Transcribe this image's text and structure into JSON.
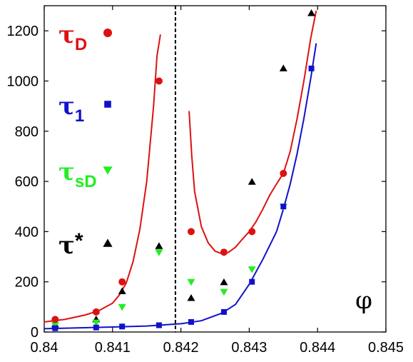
{
  "chart_data": {
    "type": "scatter",
    "title": "",
    "xlabel": "φ",
    "ylabel": "",
    "xlim": [
      0.84,
      0.845
    ],
    "ylim": [
      0,
      1300
    ],
    "xticks": [
      0.84,
      0.841,
      0.842,
      0.843,
      0.844,
      0.845
    ],
    "yticks": [
      0,
      200,
      400,
      600,
      800,
      1000,
      1200
    ],
    "xtick_labels": [
      "0.84",
      "0.841",
      "0.842",
      "0.843",
      "0.844",
      "0.845"
    ],
    "ytick_labels": [
      "0",
      "200",
      "400",
      "600",
      "800",
      "1000",
      "1200"
    ],
    "grid": false,
    "legend_position": "left",
    "vertical_line": {
      "x": 0.84192,
      "style": "dashed",
      "color": "#000000"
    },
    "series": [
      {
        "name": "τ_D",
        "label_main": "τ",
        "label_sub": "D",
        "color": "#dd1111",
        "marker": "circle",
        "points": [
          [
            0.84016,
            50
          ],
          [
            0.84076,
            80
          ],
          [
            0.84114,
            200
          ],
          [
            0.84168,
            1000
          ],
          [
            0.84215,
            400
          ],
          [
            0.84263,
            318
          ],
          [
            0.84304,
            400
          ],
          [
            0.8435,
            632
          ]
        ]
      },
      {
        "name": "τ_1",
        "label_main": "τ",
        "label_sub": "1",
        "color": "#1111cc",
        "marker": "square",
        "points": [
          [
            0.84016,
            15
          ],
          [
            0.84076,
            18
          ],
          [
            0.84114,
            22
          ],
          [
            0.84168,
            27
          ],
          [
            0.84215,
            40
          ],
          [
            0.84263,
            80
          ],
          [
            0.84304,
            200
          ],
          [
            0.8435,
            500
          ],
          [
            0.84391,
            1050
          ]
        ]
      },
      {
        "name": "τ_sD",
        "label_main": "τ",
        "label_sub": "sD",
        "color": "#22ee22",
        "marker": "triangle-down",
        "points": [
          [
            0.84016,
            28
          ],
          [
            0.84076,
            38
          ],
          [
            0.84114,
            100
          ],
          [
            0.84168,
            318
          ],
          [
            0.84215,
            200
          ],
          [
            0.84263,
            160
          ],
          [
            0.84304,
            250
          ],
          [
            0.8435,
            500
          ]
        ]
      },
      {
        "name": "τ*",
        "label_main": "τ",
        "label_sub": "*",
        "color": "#000000",
        "marker": "triangle-up",
        "points": [
          [
            0.84016,
            30
          ],
          [
            0.84076,
            50
          ],
          [
            0.84114,
            162
          ],
          [
            0.84168,
            342
          ],
          [
            0.84215,
            135
          ],
          [
            0.84263,
            198
          ],
          [
            0.84304,
            598
          ],
          [
            0.8435,
            1050
          ],
          [
            0.84391,
            1270
          ]
        ]
      }
    ],
    "fits": [
      {
        "name": "τ_D fit (left branch)",
        "color": "#dd1111",
        "points": [
          [
            0.84,
            40
          ],
          [
            0.8403,
            50
          ],
          [
            0.8406,
            68
          ],
          [
            0.8408,
            85
          ],
          [
            0.841,
            115
          ],
          [
            0.8411,
            148
          ],
          [
            0.8412,
            195
          ],
          [
            0.8413,
            280
          ],
          [
            0.8414,
            410
          ],
          [
            0.8415,
            600
          ],
          [
            0.8416,
            900
          ],
          [
            0.84165,
            1100
          ],
          [
            0.8417,
            1185
          ]
        ]
      },
      {
        "name": "τ_D fit (right branch)",
        "color": "#dd1111",
        "points": [
          [
            0.84212,
            880
          ],
          [
            0.84216,
            700
          ],
          [
            0.8422,
            560
          ],
          [
            0.8423,
            420
          ],
          [
            0.8424,
            355
          ],
          [
            0.8425,
            322
          ],
          [
            0.8426,
            312
          ],
          [
            0.8427,
            318
          ],
          [
            0.8428,
            338
          ],
          [
            0.8429,
            370
          ],
          [
            0.843,
            400
          ],
          [
            0.8431,
            440
          ],
          [
            0.8432,
            490
          ],
          [
            0.8433,
            545
          ],
          [
            0.8434,
            590
          ],
          [
            0.8435,
            632
          ],
          [
            0.8436,
            720
          ],
          [
            0.8437,
            850
          ],
          [
            0.8438,
            1000
          ],
          [
            0.8439,
            1170
          ],
          [
            0.84398,
            1280
          ]
        ]
      },
      {
        "name": "τ_1 fit",
        "color": "#1111cc",
        "points": [
          [
            0.84,
            13
          ],
          [
            0.841,
            20
          ],
          [
            0.8415,
            24
          ],
          [
            0.842,
            33
          ],
          [
            0.8423,
            45
          ],
          [
            0.8426,
            75
          ],
          [
            0.8428,
            110
          ],
          [
            0.843,
            190
          ],
          [
            0.8432,
            290
          ],
          [
            0.8434,
            400
          ],
          [
            0.8435,
            490
          ],
          [
            0.8436,
            590
          ],
          [
            0.8437,
            710
          ],
          [
            0.8438,
            850
          ],
          [
            0.8439,
            1010
          ],
          [
            0.84398,
            1150
          ]
        ]
      }
    ]
  }
}
